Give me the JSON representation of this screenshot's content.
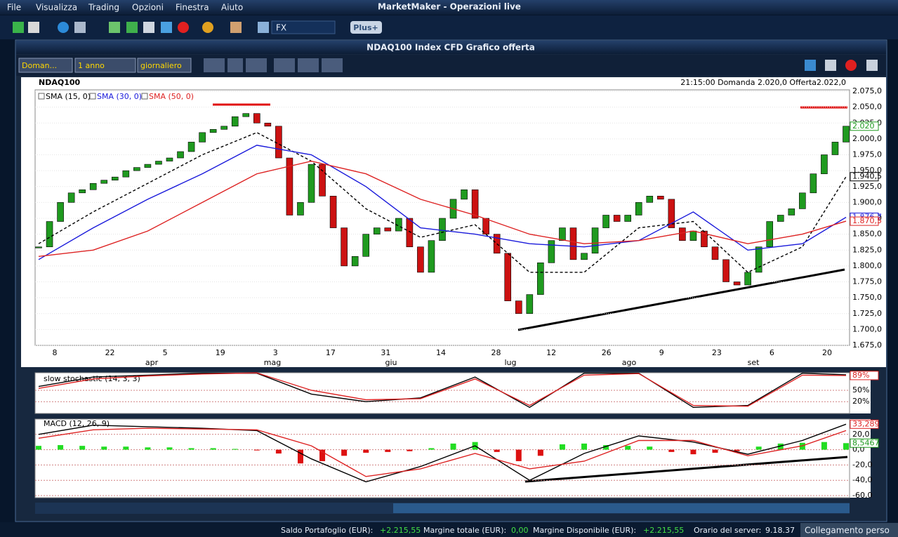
{
  "app_title": "MarketMaker - Operazioni live",
  "menu": [
    "File",
    "Visualizza",
    "Trading",
    "Opzioni",
    "Finestra",
    "Aiuto"
  ],
  "toolbar": {
    "symbol_group": "FX",
    "plus_button": "Plus+"
  },
  "window": {
    "title": "NDAQ100 Index CFD Grafico offerta",
    "controls": [
      "Doman...",
      "1 anno",
      "giornaliero"
    ]
  },
  "chart_data": [
    {
      "type": "candlestick",
      "title": "NDAQ100",
      "info": "21:15:00  Domanda 2.020,0  Offerta2.022,0",
      "up_color": "#1f9a1f",
      "down_color": "#cc1111",
      "closes": [
        1830,
        1870,
        1900,
        1915,
        1920,
        1930,
        1935,
        1940,
        1950,
        1955,
        1960,
        1965,
        1970,
        1980,
        1995,
        2010,
        2015,
        2020,
        2035,
        2040,
        2025,
        2020,
        1970,
        1880,
        1900,
        1960,
        1910,
        1860,
        1800,
        1815,
        1850,
        1860,
        1855,
        1875,
        1830,
        1790,
        1840,
        1875,
        1905,
        1920,
        1875,
        1850,
        1820,
        1745,
        1725,
        1755,
        1805,
        1840,
        1860,
        1810,
        1820,
        1860,
        1880,
        1870,
        1880,
        1900,
        1910,
        1905,
        1860,
        1840,
        1855,
        1830,
        1810,
        1775,
        1770,
        1790,
        1830,
        1870,
        1880,
        1890,
        1915,
        1945,
        1975,
        1995,
        2020
      ],
      "series": [
        {
          "name": "SMA (15, 0)",
          "color": "#000000",
          "dash": true,
          "x": [
            0,
            5,
            10,
            15,
            20,
            25,
            30,
            35,
            40,
            45,
            50,
            55,
            60,
            65,
            70,
            74
          ],
          "values": [
            1835,
            1885,
            1930,
            1975,
            2010,
            1965,
            1890,
            1845,
            1865,
            1790,
            1790,
            1860,
            1870,
            1790,
            1830,
            1940.5
          ]
        },
        {
          "name": "SMA (30, 0)",
          "color": "#1a1adb",
          "dash": false,
          "x": [
            0,
            5,
            10,
            15,
            20,
            25,
            30,
            35,
            40,
            45,
            50,
            55,
            60,
            65,
            70,
            74
          ],
          "values": [
            1810,
            1860,
            1905,
            1945,
            1990,
            1975,
            1925,
            1860,
            1850,
            1835,
            1830,
            1840,
            1885,
            1825,
            1835,
            1876.7
          ]
        },
        {
          "name": "SMA (50, 0)",
          "color": "#dd2222",
          "dash": false,
          "x": [
            0,
            5,
            10,
            15,
            20,
            25,
            30,
            35,
            40,
            45,
            50,
            55,
            60,
            65,
            70,
            74
          ],
          "values": [
            1815,
            1825,
            1855,
            1900,
            1945,
            1965,
            1945,
            1905,
            1880,
            1850,
            1835,
            1840,
            1855,
            1835,
            1850,
            1870.5
          ]
        }
      ],
      "ylim": [
        1675,
        2075
      ],
      "yticks": [
        {
          "value": 2075,
          "label": "2.075,0"
        },
        {
          "value": 2050,
          "label": "2.050,0"
        },
        {
          "value": 2025,
          "label": "2.025,0"
        },
        {
          "value": 2000,
          "label": "2.000,0"
        },
        {
          "value": 1975,
          "label": "1.975,0"
        },
        {
          "value": 1950,
          "label": "1.950,0"
        },
        {
          "value": 1925,
          "label": "1.925,0"
        },
        {
          "value": 1900,
          "label": "1.900,0"
        },
        {
          "value": 1875,
          "label": "1.875,0"
        },
        {
          "value": 1850,
          "label": "1.850,0"
        },
        {
          "value": 1825,
          "label": "1.825,0"
        },
        {
          "value": 1800,
          "label": "1.800,0"
        },
        {
          "value": 1775,
          "label": "1.775,0"
        },
        {
          "value": 1750,
          "label": "1.750,0"
        },
        {
          "value": 1725,
          "label": "1.725,0"
        },
        {
          "value": 1700,
          "label": "1.700,0"
        },
        {
          "value": 1675,
          "label": "1.675,0"
        }
      ],
      "x_tick_labels": [
        "8",
        "22",
        "5",
        "19",
        "3",
        "17",
        "31",
        "14",
        "28",
        "12",
        "26",
        "9",
        "23",
        "6",
        "20"
      ],
      "month_labels": [
        "apr",
        "mag",
        "giu",
        "lug",
        "ago",
        "set"
      ],
      "price_labels": [
        {
          "value": 2020,
          "label": "2.020",
          "color": "#1f9a1f"
        },
        {
          "value": 1940.5,
          "label": "1.940,5",
          "color": "#000000"
        },
        {
          "value": 1876.7,
          "label": "1.876,7",
          "color": "#1a1adb"
        },
        {
          "value": 1870.5,
          "label": "1.870,5",
          "color": "#dd2222"
        }
      ]
    },
    {
      "type": "line",
      "title": "slow stochastic (14, 3, 3)",
      "series": [
        {
          "color": "#000000",
          "x": [
            0,
            5,
            10,
            15,
            20,
            25,
            30,
            35,
            40,
            45,
            50,
            55,
            60,
            65,
            70,
            74
          ],
          "values": [
            60,
            85,
            90,
            95,
            95,
            40,
            20,
            30,
            85,
            5,
            95,
            95,
            5,
            10,
            95,
            91
          ]
        },
        {
          "color": "#dd2222",
          "x": [
            0,
            5,
            10,
            15,
            20,
            25,
            30,
            35,
            40,
            45,
            50,
            55,
            60,
            65,
            70,
            74
          ],
          "values": [
            55,
            80,
            88,
            93,
            96,
            50,
            25,
            28,
            80,
            10,
            90,
            94,
            10,
            8,
            90,
            89
          ]
        }
      ],
      "ylim": [
        0,
        100
      ],
      "yticks": [
        {
          "value": 50,
          "label": "50%"
        },
        {
          "value": 20,
          "label": "20%"
        }
      ],
      "price_labels": [
        {
          "value": 91,
          "label": "91%",
          "color": "#000000"
        },
        {
          "value": 89,
          "label": "89%",
          "color": "#dd2222"
        }
      ]
    },
    {
      "type": "macd",
      "title": "MACD (12, 26, 9)",
      "series": [
        {
          "color": "#000000",
          "x": [
            0,
            5,
            10,
            15,
            20,
            25,
            30,
            35,
            40,
            45,
            50,
            55,
            60,
            65,
            70,
            74
          ],
          "values": [
            20,
            32,
            30,
            28,
            25,
            -12,
            -42,
            -22,
            5,
            -40,
            -5,
            18,
            10,
            -6,
            12,
            33.289
          ]
        },
        {
          "color": "#dd2222",
          "x": [
            0,
            5,
            10,
            15,
            20,
            25,
            30,
            35,
            40,
            45,
            50,
            55,
            60,
            65,
            70,
            74
          ],
          "values": [
            15,
            26,
            28,
            27,
            26,
            5,
            -35,
            -25,
            -5,
            -25,
            -15,
            12,
            12,
            -8,
            5,
            25
          ]
        }
      ],
      "histogram": {
        "x": [
          0,
          2,
          4,
          6,
          8,
          10,
          12,
          14,
          16,
          18,
          20,
          22,
          24,
          26,
          28,
          30,
          32,
          34,
          36,
          38,
          40,
          42,
          44,
          46,
          48,
          50,
          52,
          54,
          56,
          58,
          60,
          62,
          64,
          66,
          68,
          70,
          72,
          74
        ],
        "values": [
          5,
          6,
          5,
          4,
          4,
          3,
          3,
          2,
          2,
          1,
          -1,
          -5,
          -18,
          -15,
          -8,
          -4,
          -3,
          -2,
          2,
          8,
          10,
          -3,
          -15,
          -8,
          7,
          8,
          6,
          5,
          4,
          -3,
          -6,
          -4,
          -2,
          4,
          8,
          9,
          10,
          8.5467
        ]
      },
      "ylim": [
        -60,
        40
      ],
      "yticks": [
        {
          "value": 20,
          "label": "20,0"
        },
        {
          "value": 0,
          "label": "0,0"
        },
        {
          "value": -20,
          "label": "-20,0"
        },
        {
          "value": -40,
          "label": "-40,0"
        },
        {
          "value": -60,
          "label": "-60,0"
        }
      ],
      "price_labels": [
        {
          "value": 33.289,
          "label": "33,289",
          "color": "#dd2222"
        },
        {
          "value": 8.5467,
          "label": "8,5467",
          "color": "#1f9a1f"
        }
      ]
    }
  ],
  "status_bar": [
    {
      "label": "Saldo Portafoglio (EUR):",
      "value": "+2.215,55"
    },
    {
      "label": "Margine totale (EUR):",
      "value": "0,00"
    },
    {
      "label": "Margine Disponibile (EUR):",
      "value": "+2.215,55"
    },
    {
      "label": "Orario del server:",
      "value": "9.18.37"
    }
  ],
  "connection": "Collegamento perso"
}
